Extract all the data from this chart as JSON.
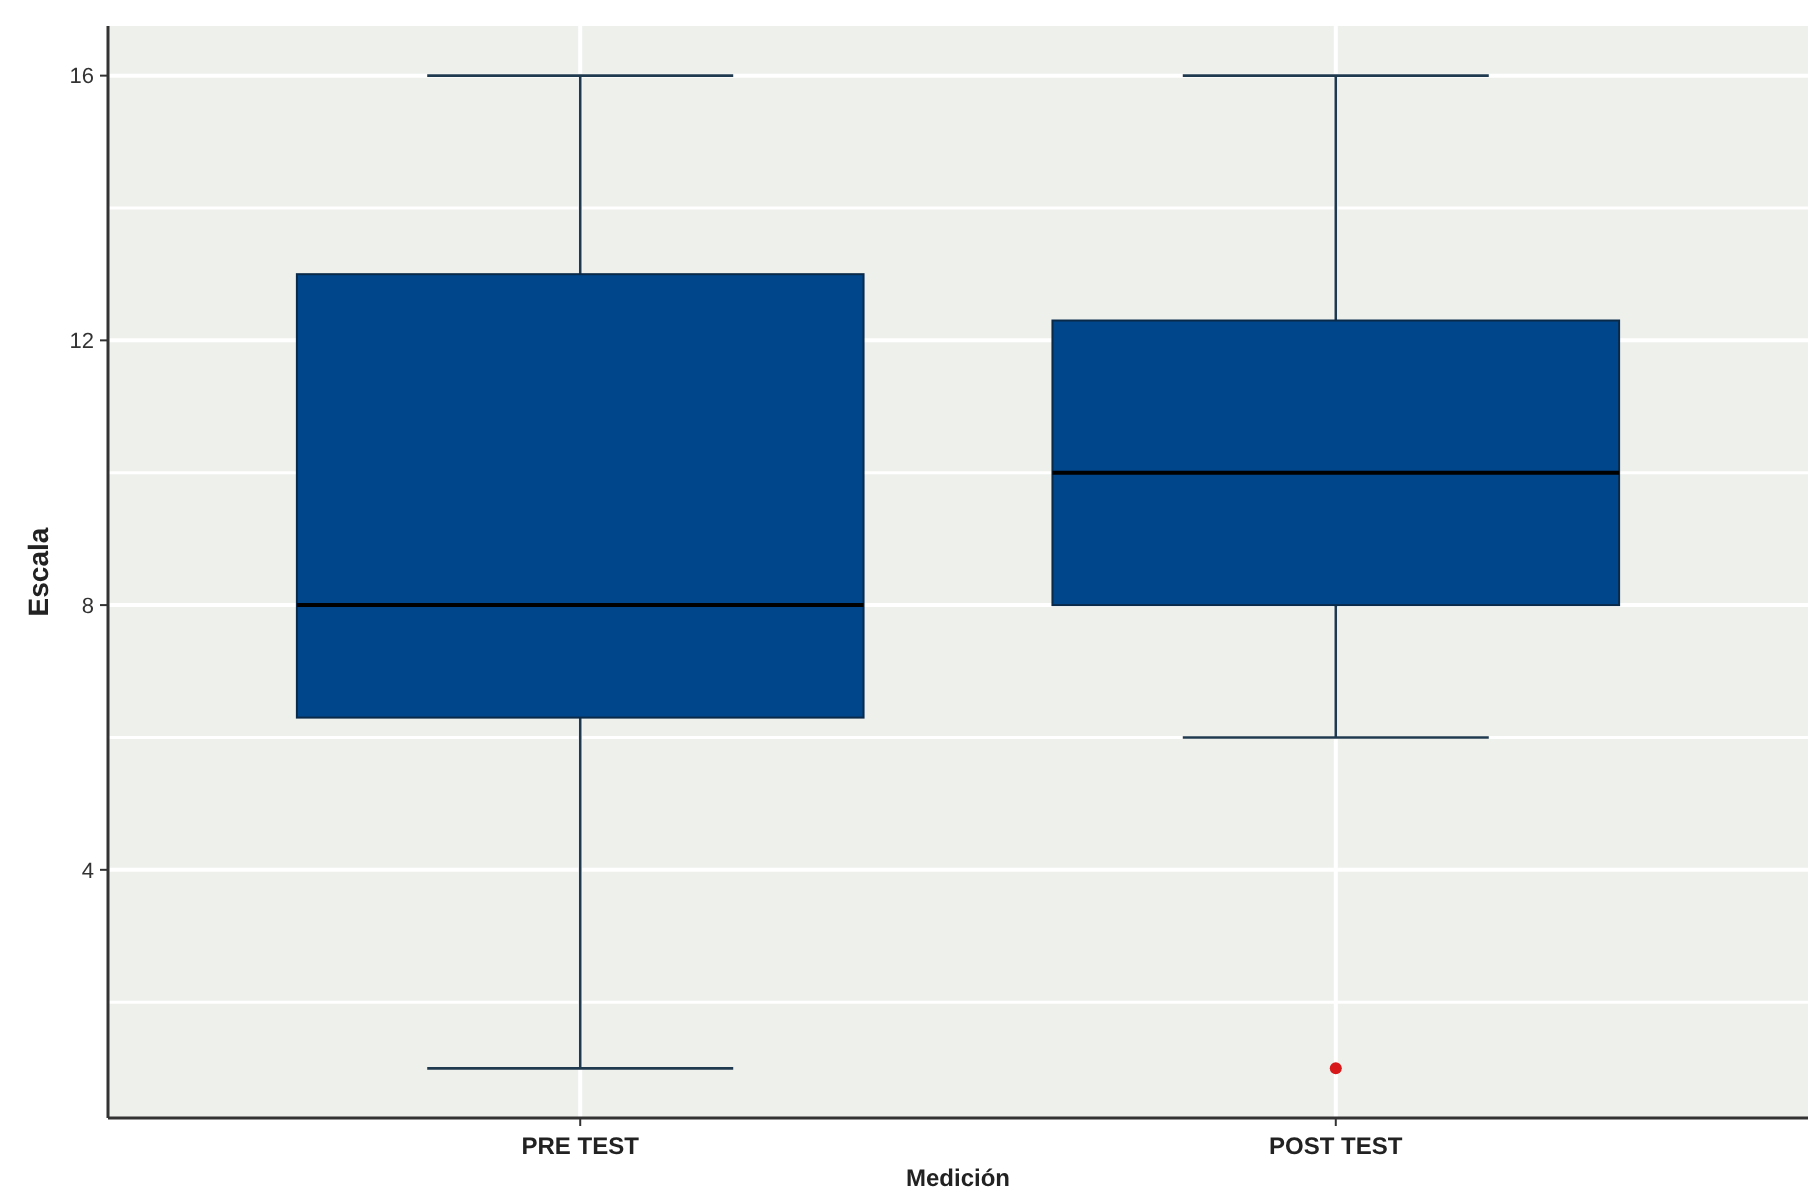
{
  "chart_data": {
    "type": "box",
    "xlabel": "Medición",
    "ylabel": "Escala",
    "categories": [
      "PRE TEST",
      "POST TEST"
    ],
    "series": [
      {
        "color": "#00468b",
        "boxes": [
          {
            "low": 1,
            "q1": 6.3,
            "median": 8,
            "q3": 13,
            "high": 16
          },
          {
            "low": 6,
            "q1": 8,
            "median": 10,
            "q3": 12.3,
            "high": 16,
            "outliers": [
              1
            ]
          }
        ]
      }
    ],
    "ylim": [
      0.25,
      16.75
    ],
    "yticks": [
      {
        "value": 2,
        "label": null
      },
      4,
      {
        "value": 6,
        "label": null
      },
      8,
      {
        "value": 10,
        "label": null
      },
      12,
      {
        "value": 14,
        "label": null
      },
      16
    ],
    "grid": true
  }
}
